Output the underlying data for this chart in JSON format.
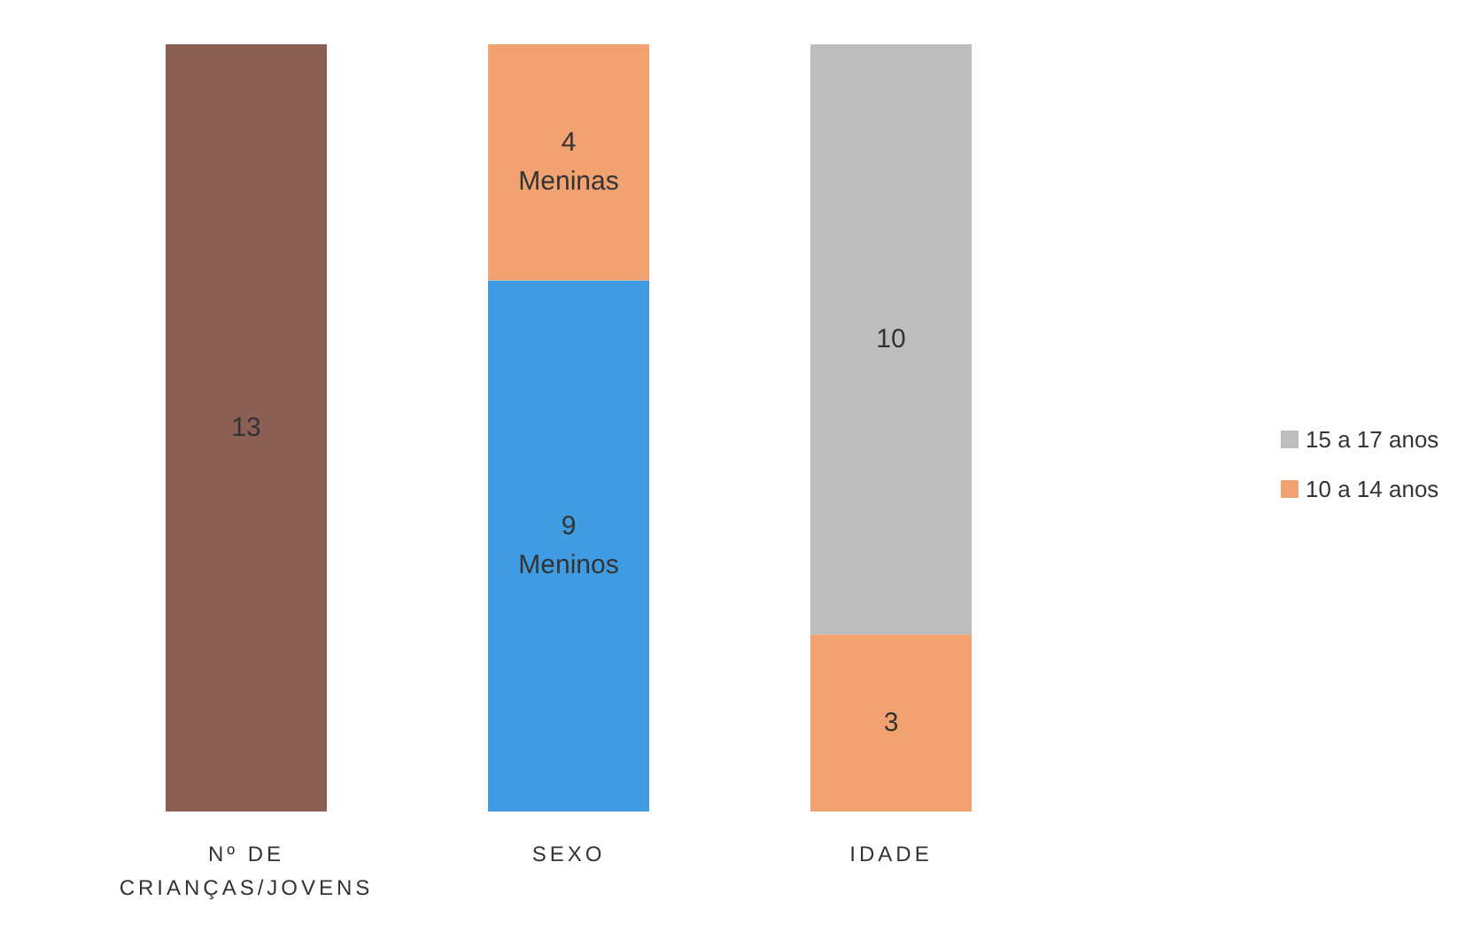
{
  "chart_data": {
    "type": "bar",
    "stacked": true,
    "categories": [
      "Nº DE CRIANÇAS/JOVENS",
      "SEXO",
      "IDADE"
    ],
    "ylim": [
      0,
      13
    ],
    "legend": "right",
    "series": [
      {
        "color": "#8c5f55",
        "values": [
          13,
          null,
          null
        ],
        "value_labels": [
          "13",
          null,
          null
        ]
      },
      {
        "name": "Meninos",
        "color": "#3f9ce3",
        "values": [
          null,
          9,
          null
        ],
        "value_labels": [
          null,
          "9",
          null
        ]
      },
      {
        "name": "10 a 14 anos",
        "color": "#f2a271",
        "values": [
          null,
          null,
          3
        ],
        "value_labels": [
          null,
          null,
          "3"
        ]
      },
      {
        "name": "Meninas",
        "color": "#f2a271",
        "values": [
          null,
          4,
          null
        ],
        "value_labels": [
          null,
          "4",
          null
        ]
      },
      {
        "name": "15 a 17 anos",
        "color": "#bdbdbd",
        "values": [
          null,
          null,
          10
        ],
        "value_labels": [
          null,
          null,
          "10"
        ]
      }
    ]
  }
}
